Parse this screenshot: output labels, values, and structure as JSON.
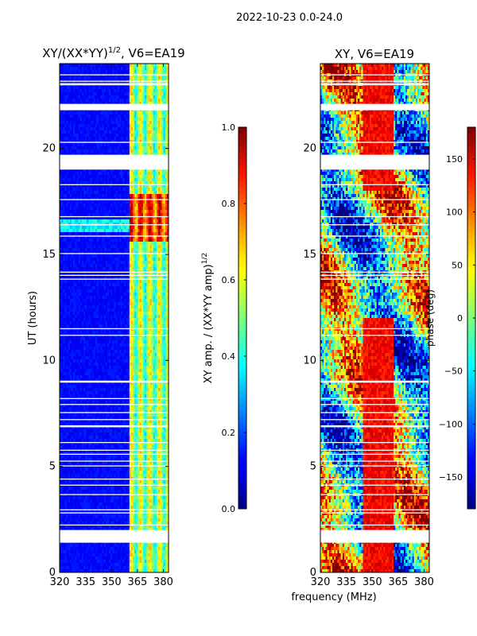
{
  "chart_data": {
    "type": "heatmap",
    "suptitle": "2022-10-23 0.0-24.0",
    "shared_xlabel": "frequency (MHz)",
    "panels": [
      {
        "id": "amp",
        "title": "XY/(XX*YY)",
        "title_sup": "1/2",
        "title_suffix": ", V6=EA19",
        "ylabel": "UT (hours)",
        "xlim": [
          320,
          383
        ],
        "ylim": [
          0,
          24
        ],
        "xticks": [
          320,
          335,
          350,
          365,
          380
        ],
        "yticks": [
          0,
          5,
          10,
          15,
          20
        ],
        "colorbar": {
          "label": "XY amp. / (XX*YY amp)",
          "label_sup": "1/2",
          "range": [
            0.0,
            1.0
          ],
          "ticks": [
            "0.0",
            "0.2",
            "0.4",
            "0.6",
            "0.8",
            "1.0"
          ]
        },
        "blank_bands_hours": [
          [
            1.4,
            2.0
          ],
          [
            19.0,
            19.7
          ],
          [
            21.8,
            22.1
          ]
        ]
      },
      {
        "id": "phase",
        "title": "XY, V6=EA19",
        "ylabel": "",
        "xlim": [
          320,
          383
        ],
        "ylim": [
          0,
          24
        ],
        "xticks": [
          320,
          335,
          350,
          365,
          380
        ],
        "yticks": [
          0,
          5,
          10,
          15,
          20
        ],
        "colorbar": {
          "label": "phase (deg)",
          "range": [
            -180,
            180
          ],
          "ticks": [
            "−150",
            "−100",
            "−50",
            "0",
            "50",
            "100",
            "150"
          ]
        },
        "blank_bands_hours": [
          [
            1.4,
            2.0
          ],
          [
            19.0,
            19.7
          ],
          [
            21.8,
            22.1
          ]
        ]
      }
    ]
  }
}
